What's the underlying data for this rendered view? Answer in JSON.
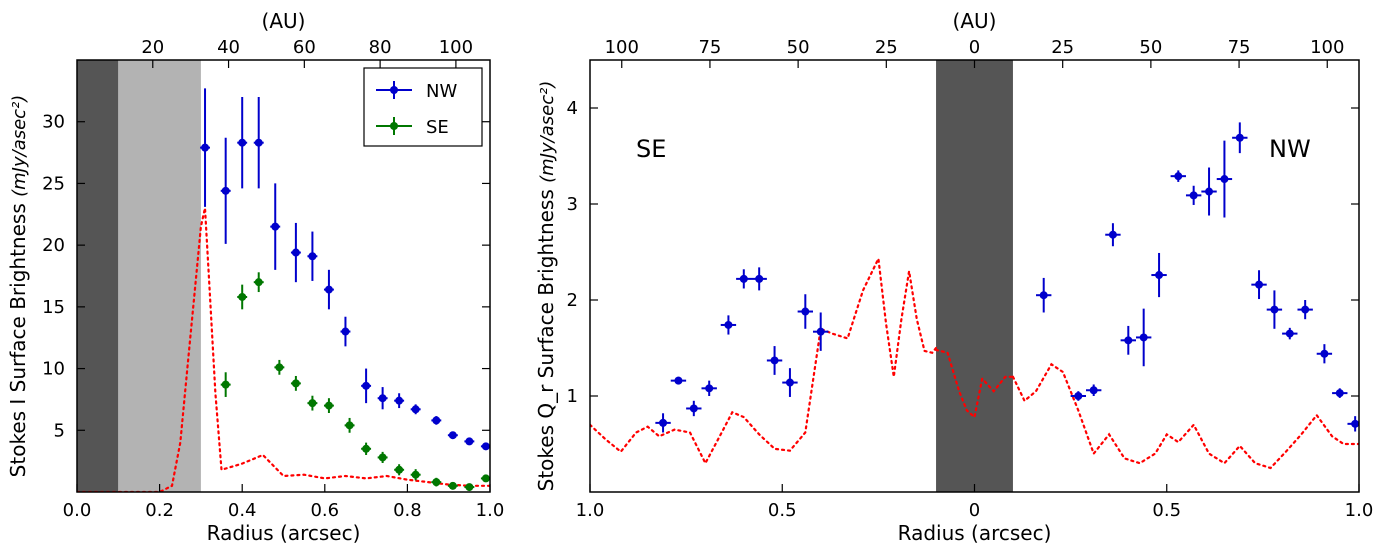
{
  "chart_data": [
    {
      "type": "scatter",
      "xlabel": "Radius (arcsec)",
      "ylabel": "Stokes I Surface Brightness",
      "ylabel_unit": "(mJy/asec²)",
      "top_axis_label": "(AU)",
      "xlim": [
        0.0,
        1.0
      ],
      "ylim": [
        0,
        35
      ],
      "x_ticks": [
        0.0,
        0.2,
        0.4,
        0.6,
        0.8,
        1.0
      ],
      "x_tick_labels": [
        "0.0",
        "0.2",
        "0.4",
        "0.6",
        "0.8",
        "1.0"
      ],
      "y_ticks": [
        5,
        10,
        15,
        20,
        25,
        30
      ],
      "y_tick_labels": [
        "5",
        "10",
        "15",
        "20",
        "25",
        "30"
      ],
      "top_ticks_au": [
        20,
        40,
        60,
        80,
        100
      ],
      "top_tick_labels": [
        "20",
        "40",
        "60",
        "80",
        "100"
      ],
      "au_per_arcsec": 109,
      "shaded_regions": [
        {
          "x0": 0.0,
          "x1": 0.1,
          "color": "#555555"
        },
        {
          "x0": 0.1,
          "x1": 0.3,
          "color": "#b3b3b3"
        }
      ],
      "legend": {
        "position": "top-right"
      },
      "series": [
        {
          "name": "NW",
          "color": "#0000cc",
          "points": [
            {
              "x": 0.31,
              "y": 27.9,
              "yerr": 4.8,
              "xerr": 0.012
            },
            {
              "x": 0.36,
              "y": 24.4,
              "yerr": 4.3,
              "xerr": 0.012
            },
            {
              "x": 0.4,
              "y": 28.3,
              "yerr": 3.7,
              "xerr": 0.012
            },
            {
              "x": 0.44,
              "y": 28.3,
              "yerr": 3.7,
              "xerr": 0.012
            },
            {
              "x": 0.48,
              "y": 21.5,
              "yerr": 3.5,
              "xerr": 0.012
            },
            {
              "x": 0.53,
              "y": 19.4,
              "yerr": 2.4,
              "xerr": 0.012
            },
            {
              "x": 0.57,
              "y": 19.1,
              "yerr": 2.0,
              "xerr": 0.012
            },
            {
              "x": 0.61,
              "y": 16.4,
              "yerr": 1.6,
              "xerr": 0.012
            },
            {
              "x": 0.65,
              "y": 13.0,
              "yerr": 1.2,
              "xerr": 0.012
            },
            {
              "x": 0.7,
              "y": 8.6,
              "yerr": 1.4,
              "xerr": 0.012
            },
            {
              "x": 0.74,
              "y": 7.6,
              "yerr": 0.9,
              "xerr": 0.012
            },
            {
              "x": 0.78,
              "y": 7.4,
              "yerr": 0.6,
              "xerr": 0.012
            },
            {
              "x": 0.82,
              "y": 6.7,
              "yerr": 0.4,
              "xerr": 0.012
            },
            {
              "x": 0.87,
              "y": 5.8,
              "yerr": 0.35,
              "xerr": 0.012
            },
            {
              "x": 0.91,
              "y": 4.6,
              "yerr": 0.25,
              "xerr": 0.012
            },
            {
              "x": 0.95,
              "y": 4.1,
              "yerr": 0.25,
              "xerr": 0.012
            },
            {
              "x": 0.99,
              "y": 3.7,
              "yerr": 0.25,
              "xerr": 0.012
            }
          ]
        },
        {
          "name": "SE",
          "color": "#007700",
          "points": [
            {
              "x": 0.36,
              "y": 8.7,
              "yerr": 1.0,
              "xerr": 0.012
            },
            {
              "x": 0.4,
              "y": 15.8,
              "yerr": 1.0,
              "xerr": 0.012
            },
            {
              "x": 0.44,
              "y": 17.0,
              "yerr": 0.8,
              "xerr": 0.012
            },
            {
              "x": 0.49,
              "y": 10.1,
              "yerr": 0.6,
              "xerr": 0.012
            },
            {
              "x": 0.53,
              "y": 8.8,
              "yerr": 0.6,
              "xerr": 0.012
            },
            {
              "x": 0.57,
              "y": 7.2,
              "yerr": 0.6,
              "xerr": 0.012
            },
            {
              "x": 0.61,
              "y": 7.0,
              "yerr": 0.6,
              "xerr": 0.012
            },
            {
              "x": 0.66,
              "y": 5.4,
              "yerr": 0.6,
              "xerr": 0.012
            },
            {
              "x": 0.7,
              "y": 3.5,
              "yerr": 0.5,
              "xerr": 0.012
            },
            {
              "x": 0.74,
              "y": 2.8,
              "yerr": 0.45,
              "xerr": 0.012
            },
            {
              "x": 0.78,
              "y": 1.8,
              "yerr": 0.45,
              "xerr": 0.012
            },
            {
              "x": 0.82,
              "y": 1.4,
              "yerr": 0.45,
              "xerr": 0.012
            },
            {
              "x": 0.87,
              "y": 0.8,
              "yerr": 0.35,
              "xerr": 0.012
            },
            {
              "x": 0.91,
              "y": 0.5,
              "yerr": 0.25,
              "xerr": 0.012
            },
            {
              "x": 0.95,
              "y": 0.4,
              "yerr": 0.25,
              "xerr": 0.012
            },
            {
              "x": 0.99,
              "y": 1.1,
              "yerr": 0.25,
              "xerr": 0.012
            }
          ]
        }
      ],
      "curve": {
        "style": "dotted",
        "color": "#ff0000",
        "x": [
          0.0,
          0.1,
          0.2,
          0.23,
          0.25,
          0.27,
          0.29,
          0.3,
          0.31,
          0.32,
          0.335,
          0.35,
          0.4,
          0.45,
          0.5,
          0.55,
          0.6,
          0.65,
          0.7,
          0.75,
          0.8,
          0.85,
          0.9,
          0.95,
          1.0
        ],
        "y": [
          0.0,
          0.0,
          0.0,
          0.5,
          4.0,
          11.0,
          18.0,
          21.5,
          23.0,
          17.0,
          8.0,
          1.8,
          2.3,
          3.0,
          1.3,
          1.4,
          1.1,
          1.3,
          1.1,
          1.3,
          1.0,
          0.8,
          0.6,
          0.5,
          0.5
        ]
      }
    },
    {
      "type": "scatter",
      "xlabel": "Radius (arcsec)",
      "ylabel": "Stokes Q_r Surface Brightness",
      "ylabel_unit": "(mJy/asec²)",
      "top_axis_label": "(AU)",
      "xlim": [
        -1.0,
        1.0
      ],
      "ylim": [
        0,
        4.5
      ],
      "x_ticks": [
        -1.0,
        -0.5,
        0.0,
        0.5,
        1.0
      ],
      "x_tick_labels": [
        "1.0",
        "0.5",
        "0",
        "0.5",
        "1.0"
      ],
      "y_ticks": [
        1,
        2,
        3,
        4
      ],
      "y_tick_labels": [
        "1",
        "2",
        "3",
        "4"
      ],
      "top_ticks_au": [
        -100,
        -75,
        -50,
        -25,
        0,
        25,
        50,
        75,
        100
      ],
      "top_tick_labels": [
        "100",
        "75",
        "50",
        "25",
        "0",
        "25",
        "50",
        "75",
        "100"
      ],
      "au_per_arcsec": 109,
      "shaded_regions": [
        {
          "x0": -0.1,
          "x1": 0.1,
          "color": "#555555"
        }
      ],
      "annotations": [
        "SE",
        "NW"
      ],
      "series": [
        {
          "color": "#0000cc",
          "points": [
            {
              "x": -0.81,
              "y": 0.72,
              "yerr": 0.1,
              "xerr": 0.02
            },
            {
              "x": -0.77,
              "y": 1.16,
              "yerr": 0.04,
              "xerr": 0.02
            },
            {
              "x": -0.73,
              "y": 0.87,
              "yerr": 0.08,
              "xerr": 0.02
            },
            {
              "x": -0.69,
              "y": 1.08,
              "yerr": 0.08,
              "xerr": 0.02
            },
            {
              "x": -0.64,
              "y": 1.74,
              "yerr": 0.1,
              "xerr": 0.02
            },
            {
              "x": -0.6,
              "y": 2.22,
              "yerr": 0.1,
              "xerr": 0.02
            },
            {
              "x": -0.56,
              "y": 2.22,
              "yerr": 0.12,
              "xerr": 0.02
            },
            {
              "x": -0.52,
              "y": 1.37,
              "yerr": 0.15,
              "xerr": 0.02
            },
            {
              "x": -0.48,
              "y": 1.14,
              "yerr": 0.15,
              "xerr": 0.02
            },
            {
              "x": -0.44,
              "y": 1.88,
              "yerr": 0.18,
              "xerr": 0.02
            },
            {
              "x": -0.4,
              "y": 1.67,
              "yerr": 0.2,
              "xerr": 0.02
            },
            {
              "x": 0.18,
              "y": 2.05,
              "yerr": 0.18,
              "xerr": 0.02
            },
            {
              "x": 0.27,
              "y": 1.0,
              "yerr": 0.05,
              "xerr": 0.02
            },
            {
              "x": 0.31,
              "y": 1.06,
              "yerr": 0.06,
              "xerr": 0.02
            },
            {
              "x": 0.36,
              "y": 2.68,
              "yerr": 0.12,
              "xerr": 0.02
            },
            {
              "x": 0.4,
              "y": 1.58,
              "yerr": 0.15,
              "xerr": 0.02
            },
            {
              "x": 0.44,
              "y": 1.61,
              "yerr": 0.3,
              "xerr": 0.02
            },
            {
              "x": 0.48,
              "y": 2.26,
              "yerr": 0.23,
              "xerr": 0.02
            },
            {
              "x": 0.53,
              "y": 3.29,
              "yerr": 0.06,
              "xerr": 0.02
            },
            {
              "x": 0.57,
              "y": 3.09,
              "yerr": 0.1,
              "xerr": 0.02
            },
            {
              "x": 0.61,
              "y": 3.13,
              "yerr": 0.25,
              "xerr": 0.02
            },
            {
              "x": 0.65,
              "y": 3.26,
              "yerr": 0.4,
              "xerr": 0.02
            },
            {
              "x": 0.69,
              "y": 3.69,
              "yerr": 0.16,
              "xerr": 0.02
            },
            {
              "x": 0.74,
              "y": 2.16,
              "yerr": 0.15,
              "xerr": 0.02
            },
            {
              "x": 0.78,
              "y": 1.9,
              "yerr": 0.2,
              "xerr": 0.02
            },
            {
              "x": 0.82,
              "y": 1.65,
              "yerr": 0.06,
              "xerr": 0.02
            },
            {
              "x": 0.86,
              "y": 1.9,
              "yerr": 0.1,
              "xerr": 0.02
            },
            {
              "x": 0.91,
              "y": 1.44,
              "yerr": 0.1,
              "xerr": 0.02
            },
            {
              "x": 0.95,
              "y": 1.03,
              "yerr": 0.05,
              "xerr": 0.02
            },
            {
              "x": 0.99,
              "y": 0.71,
              "yerr": 0.08,
              "xerr": 0.02
            }
          ]
        }
      ],
      "curves": [
        {
          "style": "dotted",
          "color": "#ff0000",
          "x": [
            -1.0,
            -0.96,
            -0.92,
            -0.88,
            -0.85,
            -0.82,
            -0.78,
            -0.74,
            -0.7,
            -0.66,
            -0.63,
            -0.6,
            -0.56,
            -0.52,
            -0.48,
            -0.44,
            -0.4,
            -0.37,
            -0.33,
            -0.29,
            -0.25,
            -0.23,
            -0.21,
            -0.19,
            -0.17,
            -0.15,
            -0.13,
            -0.11,
            -0.1
          ],
          "y": [
            0.7,
            0.55,
            0.42,
            0.62,
            0.68,
            0.58,
            0.65,
            0.62,
            0.3,
            0.6,
            0.83,
            0.78,
            0.6,
            0.45,
            0.43,
            0.62,
            1.7,
            1.65,
            1.6,
            2.1,
            2.43,
            1.75,
            1.2,
            1.8,
            2.3,
            1.8,
            1.47,
            1.45,
            1.5
          ]
        },
        {
          "style": "dotted",
          "color": "#ff0000",
          "x": [
            -0.1,
            -0.07,
            -0.04,
            -0.02,
            0.0,
            0.02,
            0.05,
            0.08,
            0.1
          ],
          "y": [
            1.48,
            1.45,
            1.05,
            0.85,
            0.78,
            1.18,
            1.05,
            1.2,
            1.2
          ]
        },
        {
          "style": "dotted",
          "color": "#ff0000",
          "x": [
            0.1,
            0.13,
            0.16,
            0.2,
            0.23,
            0.27,
            0.31,
            0.35,
            0.39,
            0.43,
            0.47,
            0.5,
            0.53,
            0.57,
            0.61,
            0.65,
            0.69,
            0.73,
            0.77,
            0.81,
            0.85,
            0.89,
            0.93,
            0.96,
            1.0
          ],
          "y": [
            1.2,
            0.95,
            1.05,
            1.33,
            1.25,
            0.85,
            0.4,
            0.6,
            0.35,
            0.3,
            0.4,
            0.6,
            0.52,
            0.7,
            0.4,
            0.3,
            0.48,
            0.3,
            0.25,
            0.42,
            0.6,
            0.8,
            0.58,
            0.5,
            0.5
          ]
        }
      ]
    }
  ]
}
